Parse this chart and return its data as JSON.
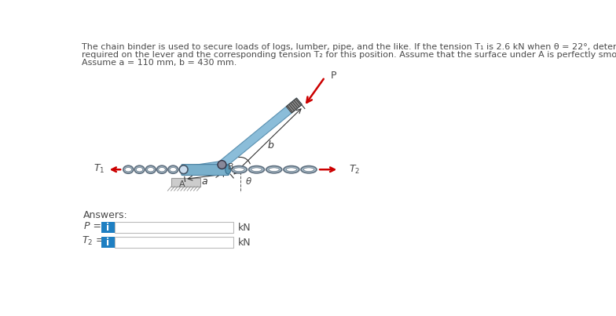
{
  "bg_color": "#ffffff",
  "text_color": "#4a4a4a",
  "blue_color": "#1e7fc2",
  "lever_color": "#8bbdd9",
  "lever_edge": "#5a90b0",
  "chain_color": "#7a8a9a",
  "red_color": "#cc0000",
  "gray_dark": "#555555",
  "title_line1": "The chain binder is used to secure loads of logs, lumber, pipe, and the like. If the tension T₁ is 2.6 kN when θ = 22°, determine the force P",
  "title_line2": "required on the lever and the corresponding tension T₂ for this position. Assume that the surface under A is perfectly smooth.",
  "title_line3": "Assume a = 110 mm, b = 430 mm."
}
